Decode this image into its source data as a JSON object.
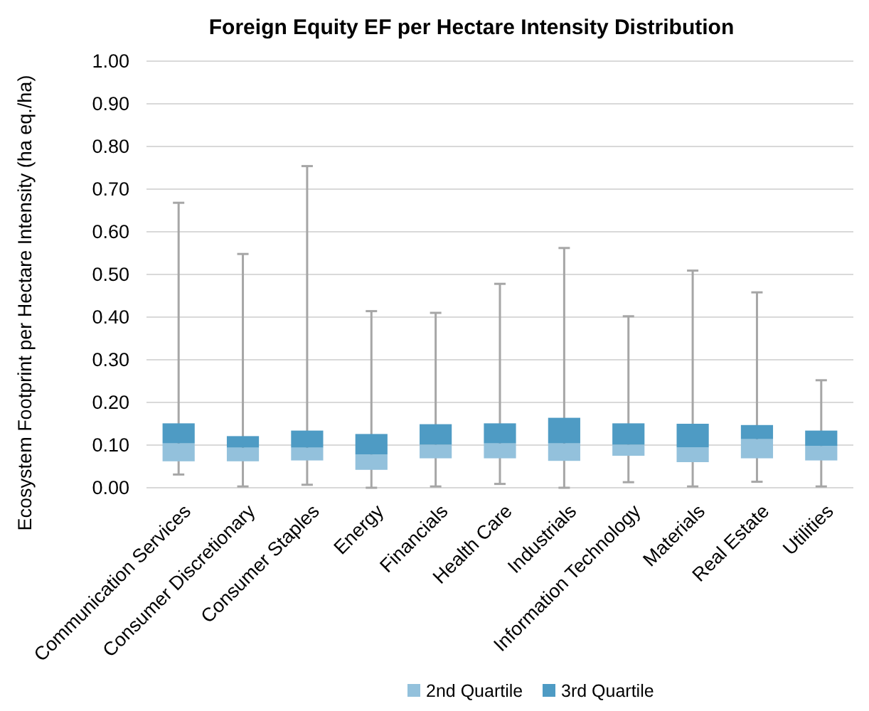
{
  "chart_data": {
    "type": "bar",
    "stacked": true,
    "title": "Foreign Equity EF per Hectare Intensity Distribution",
    "ylabel": "Ecosystem Footprint per Hectare Intensity (ha eq./ha)",
    "categories": [
      "Communication Services",
      "Consumer Discretionary",
      "Consumer Staples",
      "Energy",
      "Financials",
      "Health Care",
      "Industrials",
      "Information Technology",
      "Materials",
      "Real Estate",
      "Utilities"
    ],
    "series": [
      {
        "name": "2nd Quartile",
        "color": "#93c1dc",
        "base": [
          0.062,
          0.062,
          0.064,
          0.042,
          0.069,
          0.069,
          0.063,
          0.075,
          0.06,
          0.069,
          0.064
        ],
        "values": [
          0.042,
          0.032,
          0.03,
          0.036,
          0.032,
          0.035,
          0.041,
          0.026,
          0.035,
          0.045,
          0.034
        ]
      },
      {
        "name": "3rd Quartile",
        "color": "#4e9bc4",
        "values": [
          0.047,
          0.027,
          0.04,
          0.048,
          0.048,
          0.047,
          0.06,
          0.05,
          0.055,
          0.033,
          0.036
        ],
        "errors": [
          [
            0.031,
            0.668
          ],
          [
            0.003,
            0.548
          ],
          [
            0.007,
            0.754
          ],
          [
            0,
            0.414
          ],
          [
            0.003,
            0.41
          ],
          [
            0.009,
            0.478
          ],
          [
            0,
            0.562
          ],
          [
            0.013,
            0.402
          ],
          [
            0.003,
            0.509
          ],
          [
            0.014,
            0.458
          ],
          [
            0.003,
            0.252
          ]
        ]
      }
    ],
    "ylim": [
      0,
      1
    ],
    "yticks": [
      {
        "value": 0,
        "label": "0.00"
      },
      {
        "value": 0.1,
        "label": "0.10"
      },
      {
        "value": 0.2,
        "label": "0.20"
      },
      {
        "value": 0.3,
        "label": "0.30"
      },
      {
        "value": 0.4,
        "label": "0.40"
      },
      {
        "value": 0.5,
        "label": "0.50"
      },
      {
        "value": 0.6,
        "label": "0.60"
      },
      {
        "value": 0.7,
        "label": "0.70"
      },
      {
        "value": 0.8,
        "label": "0.80"
      },
      {
        "value": 0.9,
        "label": "0.90"
      },
      {
        "value": 1,
        "label": "1.00"
      }
    ],
    "grid": "y",
    "legend": "bottom"
  }
}
